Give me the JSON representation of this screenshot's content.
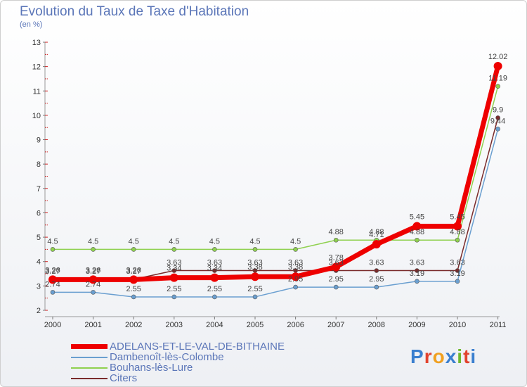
{
  "header": {
    "title": "Evolution du Taux de Taxe d'Habitation",
    "unit": "(en %)"
  },
  "logo": {
    "text": "Proxiti",
    "colors": [
      "#3a7fcf",
      "#e2432e",
      "#f0a020",
      "#3a7fcf",
      "#6fb82e",
      "#e2432e",
      "#3a7fcf"
    ]
  },
  "chart_data": {
    "type": "line",
    "title": "Evolution du Taux de Taxe d'Habitation",
    "ylabel": "(en %)",
    "xlabel": "",
    "ylim": [
      2,
      13
    ],
    "yticks": [
      "2",
      "3",
      "4",
      "5",
      "6",
      "7",
      "8",
      "9",
      "10",
      "11",
      "12",
      "13"
    ],
    "categories": [
      "2000",
      "2001",
      "2002",
      "2003",
      "2004",
      "2005",
      "2006",
      "2007",
      "2008",
      "2009",
      "2010",
      "2011"
    ],
    "grid": false,
    "legend_position": "bottom-left",
    "series": [
      {
        "name": "Bouhans-lès-Lure",
        "color": "#8fd14f",
        "width": 1.5,
        "marker": 3,
        "values": [
          4.5,
          4.5,
          4.5,
          4.5,
          4.5,
          4.5,
          4.5,
          4.88,
          4.88,
          4.88,
          4.88,
          11.19
        ],
        "labels": [
          "4.5",
          "4.5",
          "4.5",
          "4.5",
          "4.5",
          "4.5",
          "4.5",
          "4.88",
          "4.88",
          "4.88",
          "4.88",
          "11.19"
        ]
      },
      {
        "name": "Citers",
        "color": "#7a2b2b",
        "width": 1.5,
        "marker": 3,
        "values": [
          3.27,
          3.27,
          3.27,
          3.63,
          3.63,
          3.63,
          3.63,
          3.63,
          3.63,
          3.63,
          3.63,
          9.9
        ],
        "labels": [
          "3.27",
          "3.27",
          "3.27",
          "3.63",
          "3.63",
          "3.63",
          "3.63",
          "3.63",
          "3.63",
          "3.63",
          "3.63",
          "9.9"
        ]
      },
      {
        "name": "Dambenoît-lès-Colombe",
        "color": "#6a9fd0",
        "width": 1.5,
        "marker": 3,
        "values": [
          2.74,
          2.74,
          2.55,
          2.55,
          2.55,
          2.55,
          2.95,
          2.95,
          2.95,
          3.19,
          3.19,
          9.44
        ],
        "labels": [
          "2.74",
          "2.74",
          "2.55",
          "2.55",
          "2.55",
          "2.55",
          "2.95",
          "2.95",
          "2.95",
          "3.19",
          "3.19",
          "9.44"
        ]
      },
      {
        "name": "ADELANS-ET-LE-VAL-DE-BITHAINE",
        "color": "#ee0000",
        "width": 7,
        "marker": 6,
        "values": [
          3.26,
          3.26,
          3.26,
          3.34,
          3.34,
          3.38,
          3.38,
          3.78,
          4.71,
          5.45,
          5.45,
          12.02
        ],
        "labels": [
          "3.26",
          "3.26",
          "3.26",
          "3.34",
          "3.34",
          "3.38",
          "3.38",
          "3.78",
          "4.71",
          "5.45",
          "5.45",
          "12.02"
        ]
      }
    ],
    "legend": [
      {
        "name": "ADELANS-ET-LE-VAL-DE-BITHAINE",
        "color": "#ee0000",
        "thick": true
      },
      {
        "name": "Dambenoît-lès-Colombe",
        "color": "#6a9fd0",
        "thick": false
      },
      {
        "name": "Bouhans-lès-Lure",
        "color": "#8fd14f",
        "thick": false
      },
      {
        "name": "Citers",
        "color": "#7a2b2b",
        "thick": false
      }
    ]
  }
}
